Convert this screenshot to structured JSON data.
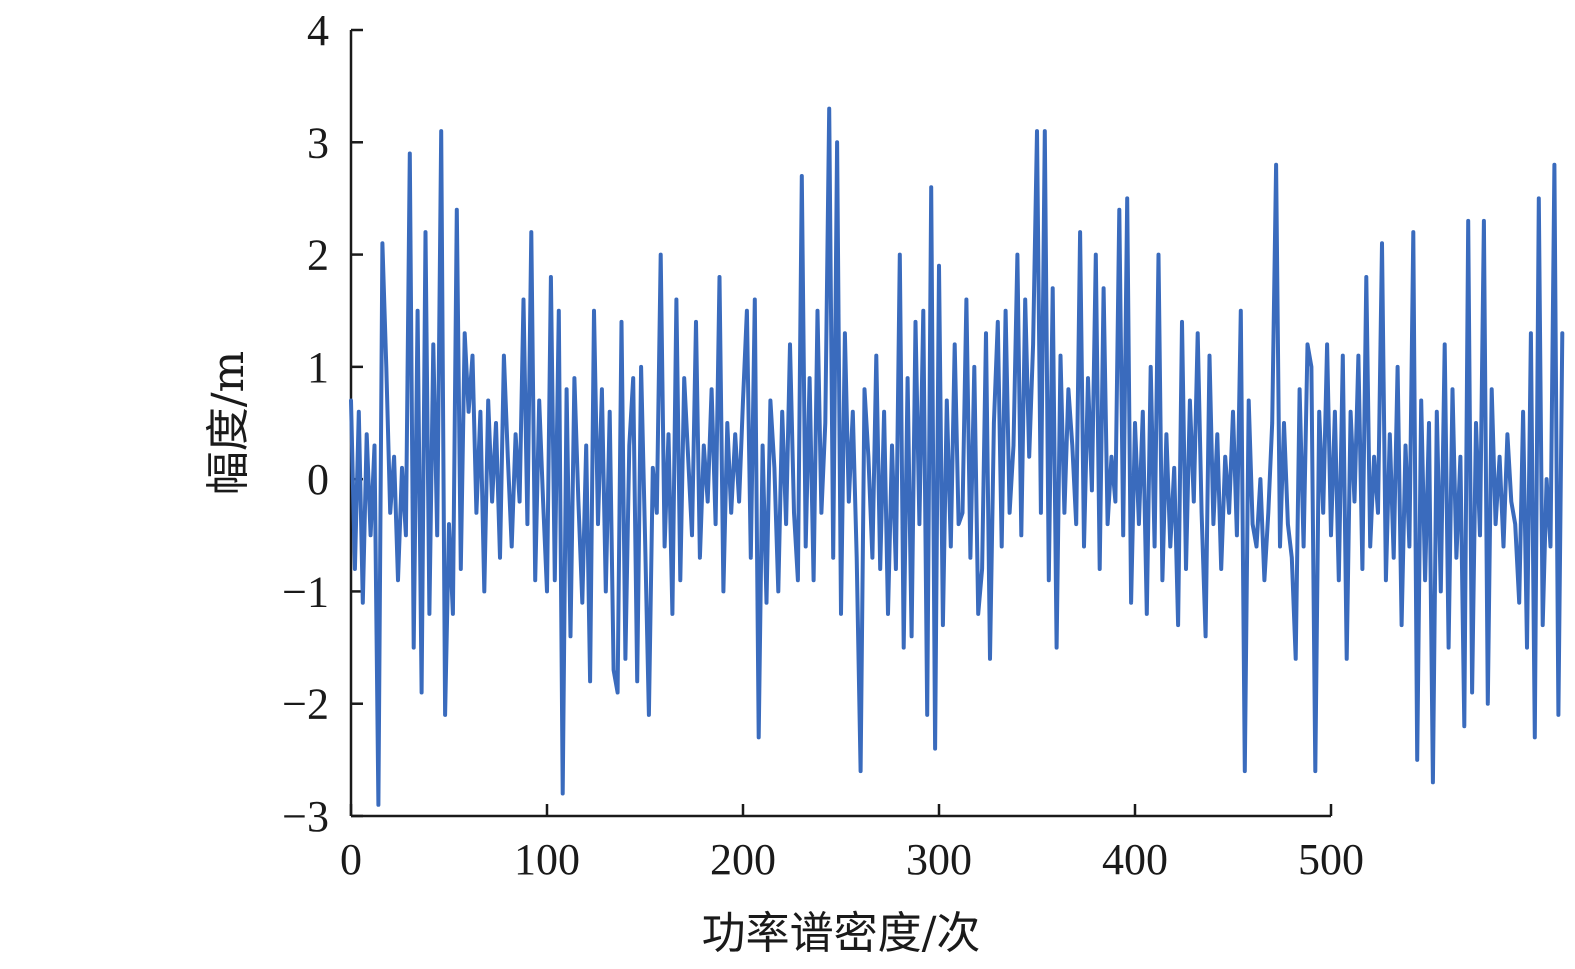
{
  "chart_data": {
    "type": "line",
    "title": "",
    "xlabel": "功率谱密度/次",
    "ylabel": "幅度/m",
    "xlim": [
      0,
      500
    ],
    "ylim": [
      -3,
      4
    ],
    "x_ticks": [
      0,
      100,
      200,
      300,
      400,
      500
    ],
    "y_ticks": [
      -3,
      -2,
      -1,
      0,
      1,
      2,
      3,
      4
    ],
    "x_tick_labels": [
      "0",
      "100",
      "200",
      "300",
      "400",
      "500"
    ],
    "y_tick_labels": [
      "−3",
      "−2",
      "−1",
      "0",
      "1",
      "2",
      "3",
      "4"
    ],
    "grid": false,
    "legend": "none",
    "line_color": "#3a6bbd",
    "series": [
      {
        "x_start": 0,
        "x_step": 2,
        "values": [
          0.7,
          -0.8,
          0.6,
          -1.1,
          0.4,
          -0.5,
          0.3,
          -2.9,
          2.1,
          1.0,
          -0.3,
          0.2,
          -0.9,
          0.1,
          -0.5,
          2.9,
          -1.5,
          1.5,
          -1.9,
          2.2,
          -1.2,
          1.2,
          -0.5,
          3.1,
          -2.1,
          -0.4,
          -1.2,
          2.4,
          -0.8,
          1.3,
          0.6,
          1.1,
          -0.3,
          0.6,
          -1.0,
          0.7,
          -0.2,
          0.5,
          -0.7,
          1.1,
          0.2,
          -0.6,
          0.4,
          -0.2,
          1.6,
          -0.4,
          2.2,
          -0.9,
          0.7,
          -0.2,
          -1.0,
          1.8,
          -0.9,
          1.5,
          -2.8,
          0.8,
          -1.4,
          0.9,
          -0.2,
          -1.1,
          0.3,
          -1.8,
          1.5,
          -0.4,
          0.8,
          -1.0,
          0.6,
          -1.7,
          -1.9,
          1.4,
          -1.6,
          0.3,
          0.9,
          -1.8,
          1.0,
          -0.5,
          -2.1,
          0.1,
          -0.3,
          2.0,
          -0.6,
          0.4,
          -1.2,
          1.6,
          -0.9,
          0.9,
          0.2,
          -0.5,
          1.4,
          -0.7,
          0.3,
          -0.2,
          0.8,
          -0.4,
          1.8,
          -1.0,
          0.5,
          -0.3,
          0.4,
          -0.2,
          0.7,
          1.5,
          -0.7,
          1.6,
          -2.3,
          0.3,
          -1.1,
          0.7,
          0.1,
          -1.0,
          0.6,
          -0.4,
          1.2,
          -0.3,
          -0.9,
          2.7,
          -0.6,
          0.9,
          -0.9,
          1.5,
          -0.3,
          0.5,
          3.3,
          -0.7,
          3.0,
          -1.2,
          1.3,
          -0.2,
          0.6,
          -0.7,
          -2.6,
          0.8,
          0.2,
          -0.7,
          1.1,
          -0.8,
          0.6,
          -1.2,
          0.3,
          -0.8,
          2.0,
          -1.5,
          0.9,
          -1.4,
          1.4,
          -0.4,
          1.5,
          -2.1,
          2.6,
          -2.4,
          1.9,
          -1.3,
          0.7,
          -0.6,
          1.2,
          -0.4,
          -0.3,
          1.6,
          -0.7,
          1.0,
          -1.2,
          -0.8,
          1.3,
          -1.6,
          0.5,
          1.4,
          -0.6,
          1.5,
          -0.3,
          0.3,
          2.0,
          -0.5,
          1.6,
          0.2,
          1.2,
          3.1,
          -0.3,
          3.1,
          -0.9,
          1.7,
          -1.5,
          1.1,
          -0.3,
          0.8,
          0.3,
          -0.4,
          2.2,
          -0.6,
          0.9,
          -0.1,
          2.0,
          -0.8,
          1.7,
          -0.4,
          0.2,
          -0.2,
          2.4,
          -0.5,
          2.5,
          -1.1,
          0.5,
          -0.4,
          0.6,
          -1.2,
          1.0,
          -0.6,
          2.0,
          -0.9,
          0.4,
          -0.6,
          0.1,
          -1.3,
          1.4,
          -0.8,
          0.7,
          -0.2,
          1.3,
          -0.3,
          -1.4,
          1.1,
          -0.4,
          0.4,
          -0.8,
          0.2,
          -0.3,
          0.6,
          -0.5,
          1.5,
          -2.6,
          0.7,
          -0.4,
          -0.6,
          0.0,
          -0.9,
          -0.3,
          0.5,
          2.8,
          -0.6,
          0.5,
          -0.4,
          -0.7,
          -1.6,
          0.8,
          -0.6,
          1.2,
          1.0,
          -2.6,
          0.6,
          -0.3,
          1.2,
          -0.5,
          0.6,
          -0.9,
          1.1,
          -1.6,
          0.6,
          -0.2,
          1.1,
          -0.8,
          1.8,
          -0.6,
          0.2,
          -0.3,
          2.1,
          -0.9,
          0.4,
          -0.7,
          1.0,
          -1.3,
          0.3,
          -0.6,
          2.2,
          -2.5,
          0.7,
          -0.9,
          0.5,
          -2.7,
          0.6,
          -1.0,
          1.2,
          -1.5,
          0.8,
          -0.7,
          0.2,
          -2.2,
          2.3,
          -1.9,
          0.5,
          -0.5,
          2.3,
          -2.0,
          0.8,
          -0.4,
          0.2,
          -0.6,
          0.4,
          -0.2,
          -0.4,
          -1.1,
          0.6,
          -1.5,
          1.3,
          -2.3,
          2.5,
          -1.3,
          0.0,
          -0.6,
          2.8,
          -2.1,
          1.3
        ]
      }
    ]
  }
}
